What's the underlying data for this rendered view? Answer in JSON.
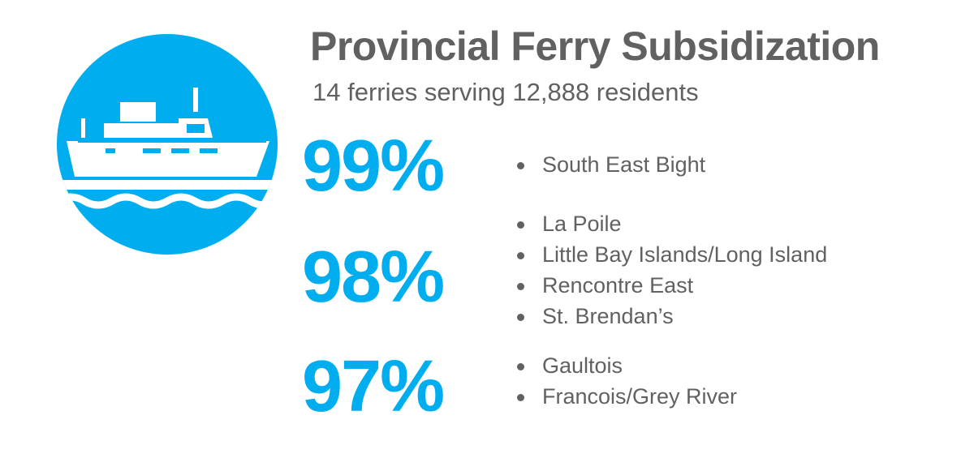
{
  "colors": {
    "accent": "#00aeef",
    "text": "#616161",
    "background": "#ffffff"
  },
  "icon": "ferry-icon",
  "title": "Provincial Ferry Subsidization",
  "subtitle": "14 ferries serving 12,888 residents",
  "groups": [
    {
      "percent": "99%",
      "routes": [
        "South East Bight"
      ]
    },
    {
      "percent": "98%",
      "routes": [
        "La Poile",
        "Little Bay Islands/Long Island",
        "Rencontre East",
        "St. Brendan’s"
      ]
    },
    {
      "percent": "97%",
      "routes": [
        "Gaultois",
        "Francois/Grey River"
      ]
    }
  ]
}
